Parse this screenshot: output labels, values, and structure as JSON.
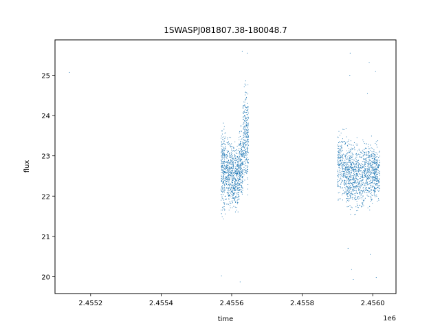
{
  "chart_data": {
    "type": "scatter",
    "title": "1SWASPJ081807.38-180048.7",
    "xlabel": "time",
    "ylabel": "flux",
    "x_offset_label": "1e6",
    "xlim": [
      2455099,
      2456066
    ],
    "ylim": [
      19.58,
      25.88
    ],
    "x_ticks": [
      2455200,
      2455400,
      2455600,
      2455800,
      2456000
    ],
    "x_tick_labels": [
      "2.4552",
      "2.4554",
      "2.4556",
      "2.4558",
      "2.4560"
    ],
    "y_ticks": [
      20,
      21,
      22,
      23,
      24,
      25
    ],
    "y_tick_labels": [
      "20",
      "21",
      "22",
      "23",
      "24",
      "25"
    ],
    "grid": false,
    "marker_color": "#1f77b4",
    "clusters": [
      {
        "x_range": [
          2455570,
          2455583
        ],
        "y_range": [
          21.2,
          24.1
        ],
        "n": 260
      },
      {
        "x_range": [
          2455584,
          2455600
        ],
        "y_range": [
          21.5,
          23.7
        ],
        "n": 240
      },
      {
        "x_range": [
          2455600,
          2455620
        ],
        "y_range": [
          21.3,
          23.5
        ],
        "n": 320
      },
      {
        "x_range": [
          2455620,
          2455632
        ],
        "y_range": [
          21.6,
          23.9
        ],
        "n": 220
      },
      {
        "x_range": [
          2455632,
          2455648
        ],
        "y_range": [
          21.8,
          25.2
        ],
        "n": 300
      },
      {
        "x_range": [
          2455900,
          2455925
        ],
        "y_range": [
          21.6,
          23.9
        ],
        "n": 260
      },
      {
        "x_range": [
          2455925,
          2455945
        ],
        "y_range": [
          21.4,
          23.7
        ],
        "n": 280
      },
      {
        "x_range": [
          2455945,
          2455975
        ],
        "y_range": [
          21.3,
          23.6
        ],
        "n": 330
      },
      {
        "x_range": [
          2455975,
          2456000
        ],
        "y_range": [
          21.5,
          23.7
        ],
        "n": 300
      },
      {
        "x_range": [
          2456000,
          2456020
        ],
        "y_range": [
          21.6,
          23.5
        ],
        "n": 260
      }
    ],
    "points": [
      {
        "x": 2455140,
        "y": 25.07
      },
      {
        "x": 2455571,
        "y": 20.02
      },
      {
        "x": 2455624,
        "y": 19.87
      },
      {
        "x": 2455630,
        "y": 25.6
      },
      {
        "x": 2455644,
        "y": 25.55
      },
      {
        "x": 2455936,
        "y": 25.55
      },
      {
        "x": 2455935,
        "y": 25.0
      },
      {
        "x": 2455940,
        "y": 20.18
      },
      {
        "x": 2455945,
        "y": 19.93
      },
      {
        "x": 2455990,
        "y": 25.32
      },
      {
        "x": 2455993,
        "y": 20.55
      },
      {
        "x": 2456008,
        "y": 25.1
      },
      {
        "x": 2456010,
        "y": 19.98
      },
      {
        "x": 2455930,
        "y": 20.7
      },
      {
        "x": 2455985,
        "y": 24.55
      }
    ]
  }
}
